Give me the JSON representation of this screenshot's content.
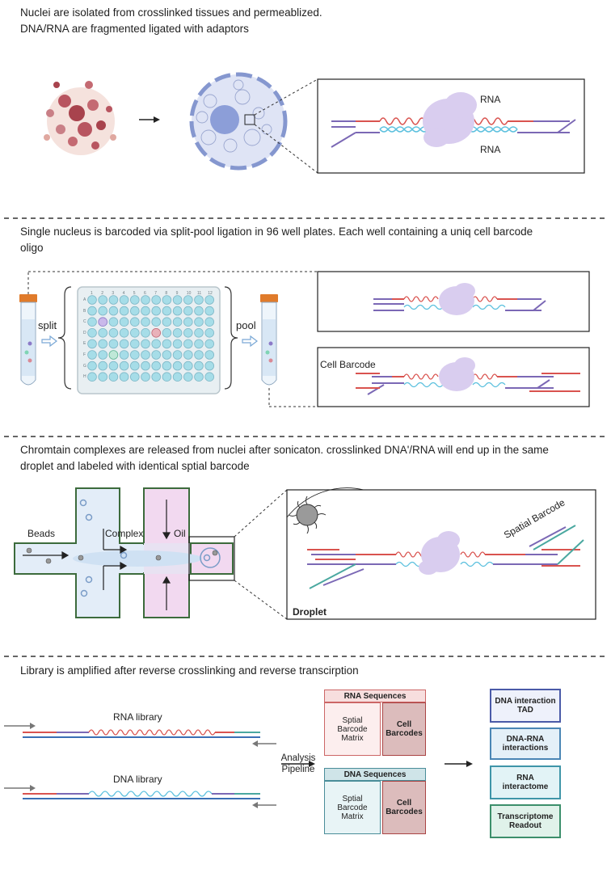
{
  "section1": {
    "line1": "Nuclei are isolated from crosslinked tissues and permeablized.",
    "line2": "DNA/RNA are fragmented ligated with adaptors",
    "rna_top": "RNA",
    "rna_bottom": "RNA"
  },
  "section2": {
    "line1": "Single nucleus is barcoded via split-pool ligation in 96 well plates. Each well containing a uniq cell barcode",
    "line2": "oligo",
    "split": "split",
    "pool": "pool",
    "cell_barcode": "Cell Barcode",
    "plate_cols": [
      "1",
      "2",
      "3",
      "4",
      "5",
      "6",
      "7",
      "8",
      "9",
      "10",
      "11",
      "12"
    ],
    "plate_rows": [
      "A",
      "B",
      "C",
      "D",
      "E",
      "F",
      "G",
      "H"
    ]
  },
  "section3": {
    "line1": "Chromtain complexes are released from nuclei after sonicaton. crosslinked DNA'/RNA will end up in the same",
    "line2": "droplet and labeled with identical sptial barcode",
    "beads": "Beads",
    "complex": "Complex",
    "oil": "Oil",
    "spatial_barcode": "Spatial Barcode",
    "droplet": "Droplet"
  },
  "section4": {
    "line1": "Library is amplified after reverse crosslinking and reverse transcirption",
    "rna_library": "RNA library",
    "dna_library": "DNA library",
    "analysis": "Analysis",
    "pipeline": "Pipeline",
    "rna_sequences": "RNA Sequences",
    "dna_sequences": "DNA Sequences",
    "matrix_a": "Sptial",
    "matrix_b": "Barcode",
    "matrix_c": "Matrix",
    "cell_a": "Cell",
    "cell_b": "Barcodes",
    "out1_a": "DNA interaction",
    "out1_b": "TAD",
    "out2_a": "DNA-RNA",
    "out2_b": "interactions",
    "out3_a": "RNA",
    "out3_b": "interactome",
    "out4_a": "Transcriptome",
    "out4_b": "Readout"
  },
  "colors": {
    "rna": "#d9534f",
    "dna": "#5bc0de",
    "adapter": "#7b68b5",
    "protein": "#d9cdef",
    "nucleus": "#dfe4f5",
    "tube_cap": "#e07b2b",
    "plate_well": "#a6dde8",
    "rna_box": "#f7dede",
    "dna_box": "#e0f0f2",
    "chip_blue": "#e3edf8",
    "chip_pink": "#f2d9f0",
    "chip_border": "#3c6b3c"
  }
}
